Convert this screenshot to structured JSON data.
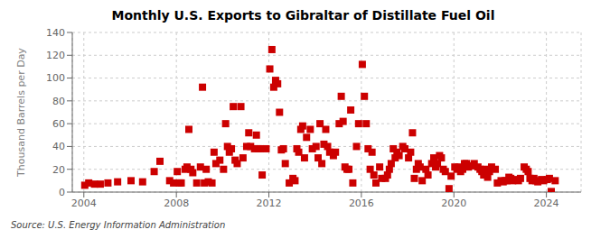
{
  "chart_data": {
    "type": "scatter",
    "title": "Monthly U.S. Exports to Gibraltar of Distillate Fuel Oil",
    "ylabel": "Thousand Barrels per Day",
    "annotation": "Source: U.S. Energy Information Administration",
    "color": "#cc0000",
    "marker": "square",
    "grid": true,
    "xlim": [
      2003.5,
      2025.5
    ],
    "ylim": [
      0,
      140
    ],
    "xticks": [
      2004,
      2008,
      2012,
      2016,
      2020,
      2024
    ],
    "yticks": [
      0,
      20,
      40,
      60,
      80,
      100,
      120,
      140
    ],
    "x": [
      2004.04,
      2004.21,
      2004.46,
      2004.71,
      2005.04,
      2005.46,
      2006.04,
      2006.54,
      2007.04,
      2007.29,
      2007.71,
      2007.88,
      2008.04,
      2008.13,
      2008.21,
      2008.38,
      2008.46,
      2008.54,
      2008.63,
      2008.71,
      2008.88,
      2009.04,
      2009.13,
      2009.21,
      2009.29,
      2009.38,
      2009.54,
      2009.63,
      2009.71,
      2009.88,
      2010.04,
      2010.13,
      2010.21,
      2010.29,
      2010.38,
      2010.46,
      2010.54,
      2010.63,
      2010.79,
      2010.88,
      2011.04,
      2011.13,
      2011.21,
      2011.38,
      2011.46,
      2011.54,
      2011.63,
      2011.71,
      2011.88,
      2012.04,
      2012.13,
      2012.21,
      2012.29,
      2012.38,
      2012.46,
      2012.54,
      2012.63,
      2012.71,
      2012.88,
      2013.04,
      2013.13,
      2013.21,
      2013.29,
      2013.38,
      2013.46,
      2013.54,
      2013.63,
      2013.79,
      2013.88,
      2014.04,
      2014.13,
      2014.21,
      2014.29,
      2014.38,
      2014.46,
      2014.54,
      2014.63,
      2014.79,
      2014.88,
      2015.04,
      2015.13,
      2015.21,
      2015.29,
      2015.38,
      2015.46,
      2015.54,
      2015.63,
      2015.79,
      2015.88,
      2016.04,
      2016.13,
      2016.21,
      2016.29,
      2016.38,
      2016.46,
      2016.54,
      2016.63,
      2016.79,
      2016.88,
      2017.04,
      2017.13,
      2017.21,
      2017.29,
      2017.38,
      2017.46,
      2017.54,
      2017.63,
      2017.79,
      2017.88,
      2018.04,
      2018.13,
      2018.21,
      2018.29,
      2018.38,
      2018.46,
      2018.54,
      2018.63,
      2018.79,
      2018.88,
      2019.04,
      2019.13,
      2019.21,
      2019.29,
      2019.38,
      2019.46,
      2019.54,
      2019.63,
      2019.79,
      2019.88,
      2020.04,
      2020.13,
      2020.21,
      2020.29,
      2020.38,
      2020.46,
      2020.54,
      2020.63,
      2020.79,
      2020.88,
      2021.04,
      2021.13,
      2021.21,
      2021.29,
      2021.38,
      2021.46,
      2021.54,
      2021.63,
      2021.79,
      2021.88,
      2022.04,
      2022.13,
      2022.21,
      2022.29,
      2022.38,
      2022.46,
      2022.54,
      2022.63,
      2022.79,
      2022.88,
      2023.04,
      2023.13,
      2023.21,
      2023.29,
      2023.38,
      2023.46,
      2023.54,
      2023.63,
      2023.79,
      2023.88,
      2024.04,
      2024.13,
      2024.21,
      2024.38
    ],
    "values": [
      6,
      8,
      7,
      7,
      8,
      9,
      10,
      9,
      18,
      27,
      10,
      8,
      18,
      8,
      8,
      20,
      22,
      55,
      20,
      17,
      8,
      22,
      92,
      8,
      20,
      9,
      8,
      35,
      25,
      28,
      20,
      60,
      40,
      35,
      38,
      75,
      28,
      25,
      75,
      30,
      40,
      52,
      40,
      38,
      50,
      38,
      38,
      15,
      38,
      108,
      125,
      92,
      98,
      95,
      70,
      37,
      38,
      25,
      8,
      12,
      10,
      38,
      35,
      55,
      58,
      30,
      48,
      55,
      38,
      40,
      30,
      60,
      25,
      42,
      55,
      40,
      35,
      32,
      35,
      60,
      84,
      62,
      22,
      20,
      20,
      72,
      8,
      40,
      60,
      112,
      84,
      60,
      38,
      20,
      35,
      15,
      8,
      22,
      12,
      12,
      15,
      20,
      25,
      38,
      30,
      35,
      32,
      40,
      38,
      30,
      35,
      52,
      12,
      20,
      25,
      22,
      10,
      20,
      15,
      25,
      30,
      22,
      25,
      32,
      30,
      20,
      18,
      3,
      14,
      22,
      20,
      22,
      18,
      20,
      25,
      25,
      22,
      23,
      25,
      22,
      20,
      18,
      15,
      20,
      13,
      18,
      22,
      20,
      8,
      10,
      9,
      10,
      10,
      13,
      12,
      10,
      11,
      10,
      12,
      22,
      20,
      18,
      12,
      10,
      12,
      10,
      9,
      11,
      10,
      11,
      12,
      0.5,
      10
    ]
  }
}
